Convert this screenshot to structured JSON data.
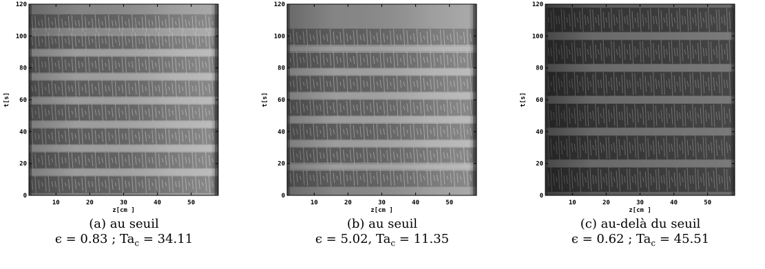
{
  "panels": [
    {
      "caption_line1": "(a) au seuil",
      "caption_line2": "ϵ = 0.83 ; Ta",
      "caption_sub": "c",
      "caption_line2_tail": " = 34.11",
      "dark_bands_t": [
        7,
        22,
        37,
        52,
        67,
        82,
        97,
        108
      ],
      "style": "light"
    },
    {
      "caption_line1": "(b) au seuil",
      "caption_line2": "ϵ = 5.02, Ta",
      "caption_sub": "c",
      "caption_line2_tail": " = 11.35",
      "dark_bands_t": [
        11,
        25,
        40,
        55,
        70,
        85,
        99
      ],
      "style": "light"
    },
    {
      "caption_line1": "(c) au-delà du seuil",
      "caption_line2": "ϵ = 0.62 ; Ta",
      "caption_sub": "c",
      "caption_line2_tail": " = 45.51",
      "dark_bands_t": [
        10,
        30,
        50,
        70,
        90,
        110
      ],
      "style": "dark"
    }
  ],
  "axes": {
    "xlabel": "z[cm ]",
    "ylabel": "t[s]",
    "xticks": [
      "10",
      "20",
      "30",
      "40",
      "50"
    ],
    "yticks": [
      "0",
      "20",
      "40",
      "60",
      "80",
      "100",
      "120"
    ],
    "xlim": [
      2,
      58
    ],
    "ylim": [
      0,
      120
    ]
  }
}
